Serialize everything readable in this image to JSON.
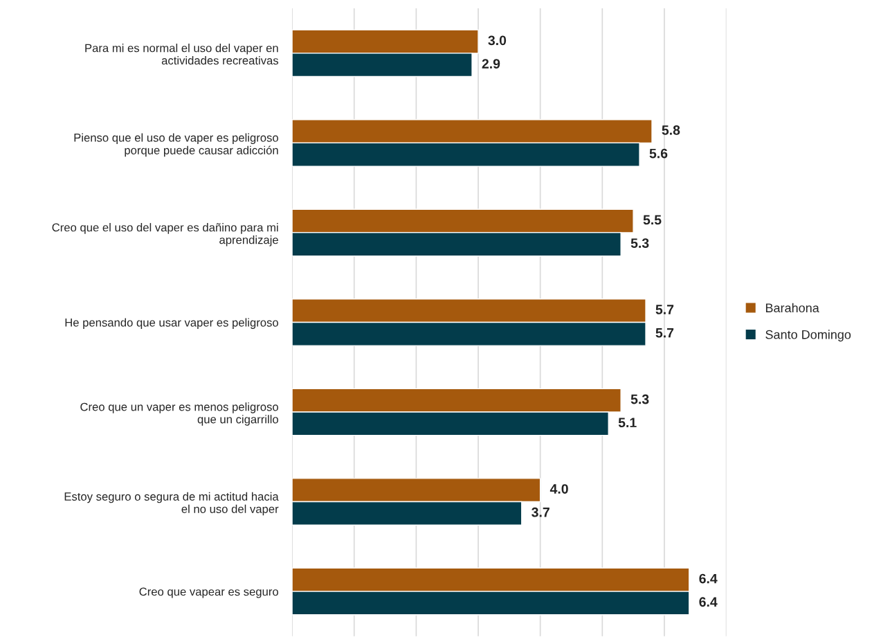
{
  "chart_data": {
    "type": "bar",
    "orientation": "horizontal",
    "categories": [
      "Para mi es normal el uso del vaper en\nactividades recreativas",
      "Pienso que el uso de vaper es peligroso\nporque puede causar adicción",
      "Creo que el uso del vaper es dañino para mi\naprendizaje",
      "He pensando que usar vaper es peligroso",
      "Creo que un vaper es menos peligroso\nque un cigarrillo",
      "Estoy seguro o segura de mi actitud hacia\nel no uso del vaper",
      "Creo que vapear es seguro"
    ],
    "series": [
      {
        "name": "Barahona",
        "color": "#a5590d",
        "values": [
          3.0,
          5.8,
          5.5,
          5.7,
          5.3,
          4.0,
          6.4
        ],
        "value_labels": [
          "3.0",
          "5.8",
          "5.5",
          "5.7",
          "5.3",
          "4.0",
          "6.4"
        ]
      },
      {
        "name": "Santo Domingo",
        "color": "#033c4b",
        "values": [
          2.9,
          5.6,
          5.3,
          5.7,
          5.1,
          3.7,
          6.4
        ],
        "value_labels": [
          "2.9",
          "5.6",
          "5.3",
          "5.7",
          "5.1",
          "3.7",
          "6.4"
        ]
      }
    ],
    "xlim": [
      0,
      7
    ],
    "xticks": [
      {
        "value": 0,
        "label": null
      },
      {
        "value": 1,
        "label": null
      },
      {
        "value": 2,
        "label": null
      },
      {
        "value": 3,
        "label": null
      },
      {
        "value": 4,
        "label": null
      },
      {
        "value": 5,
        "label": null
      },
      {
        "value": 6,
        "label": null
      },
      {
        "value": 7,
        "label": null
      }
    ],
    "grid": "x",
    "legend": "right",
    "tick_labels": "y"
  }
}
